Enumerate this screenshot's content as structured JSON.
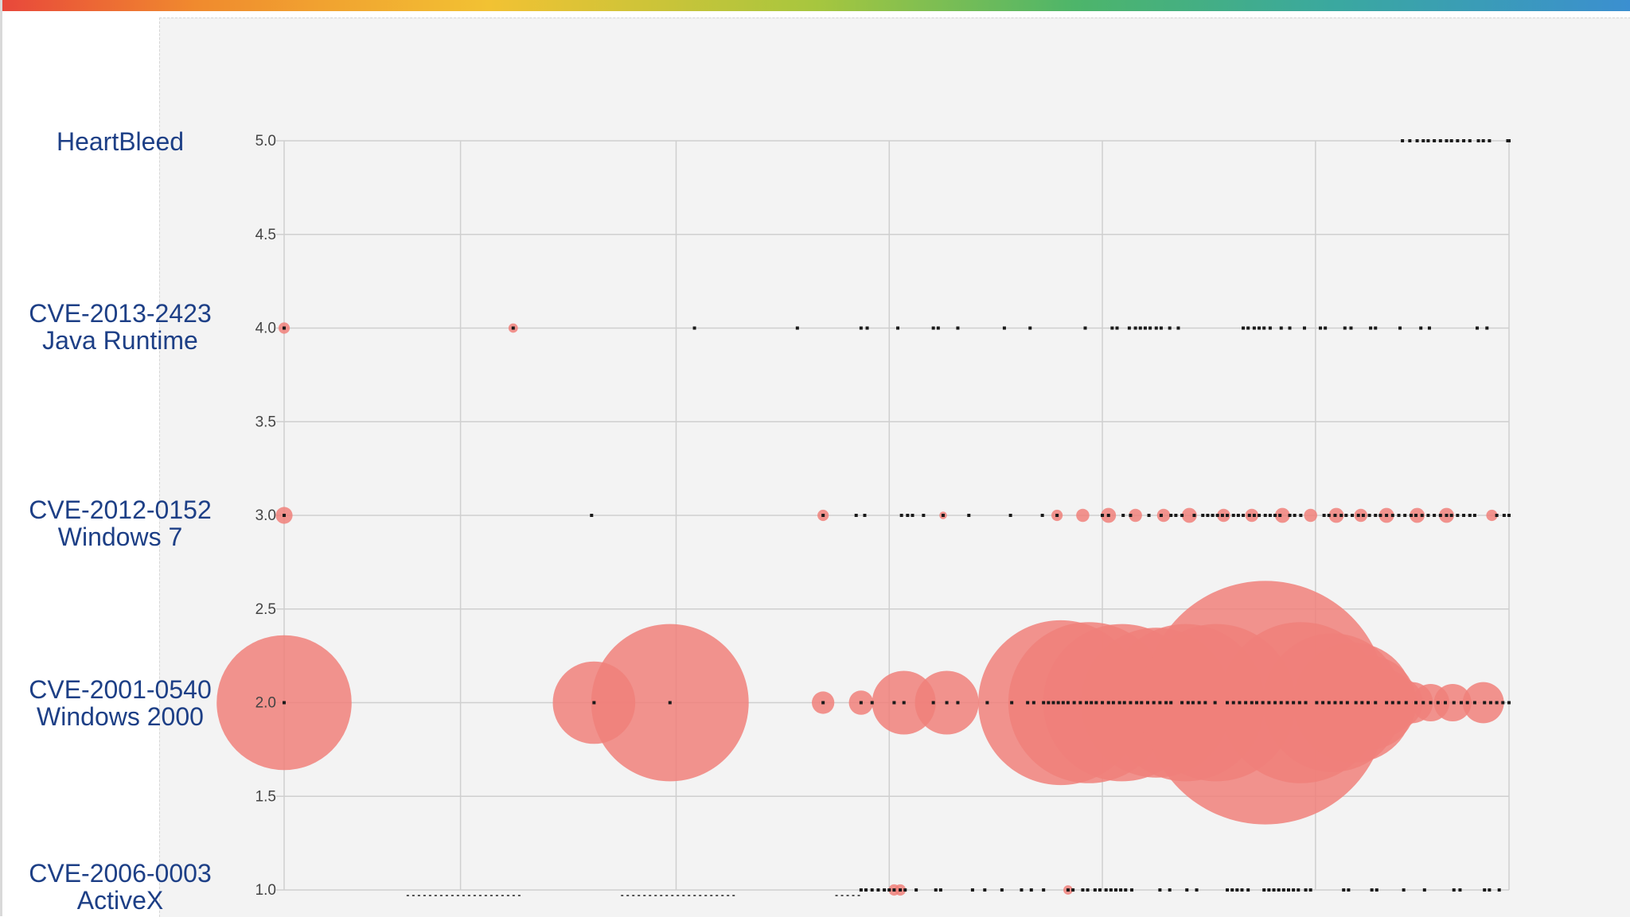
{
  "colors": {
    "bubble": "#f0807a",
    "dot": "#1a1a1a",
    "grid": "#cfcfcf",
    "label": "#1d3f86"
  },
  "row_labels": [
    {
      "line1": "HeartBleed",
      "line2": ""
    },
    {
      "line1": "CVE-2013-2423",
      "line2": "Java Runtime"
    },
    {
      "line1": "CVE-2012-0152",
      "line2": "Windows 7"
    },
    {
      "line1": "CVE-2001-0540",
      "line2": "Windows 2000"
    },
    {
      "line1": "CVE-2006-0003",
      "line2": "ActiveX"
    }
  ],
  "chart_data": {
    "type": "scatter",
    "title": "",
    "xlabel": "",
    "ylabel": "",
    "ylim": [
      1.0,
      5.0
    ],
    "xlim": [
      0,
      100
    ],
    "y_ticks": [
      "5.0",
      "4.5",
      "4.0",
      "3.5",
      "3.0",
      "2.5",
      "2.0",
      "1.5",
      "1.0"
    ],
    "x_gridlines": [
      0,
      14.4,
      32,
      49.4,
      66.8,
      84.2,
      100
    ],
    "grid": true,
    "legend": "none",
    "series": [
      {
        "y": 5.0,
        "dots": [
          91.3,
          91.9,
          92.5,
          93.0,
          93.4,
          93.9,
          94.4,
          94.9,
          95.3,
          95.8,
          96.3,
          96.8,
          97.5,
          97.9,
          98.4,
          99.9,
          100
        ],
        "bubbles": []
      },
      {
        "y": 4.0,
        "dots": [
          0,
          18.7,
          33.5,
          41.9,
          47.1,
          47.6,
          50.1,
          53.0,
          53.4,
          55.0,
          58.8,
          60.9,
          65.4,
          67.6,
          68.0,
          69.0,
          69.5,
          69.9,
          70.3,
          70.7,
          71.2,
          71.6,
          72.3,
          73.0,
          78.3,
          78.7,
          79.2,
          79.6,
          80.0,
          80.5,
          81.4,
          82.1,
          83.3,
          84.6,
          85.0,
          86.6,
          87.1,
          88.7,
          89.1,
          91.1,
          92.8,
          93.5,
          97.4,
          98.2
        ],
        "bubbles": [
          {
            "x": 0,
            "r": 0.3
          },
          {
            "x": 18.7,
            "r": 0.25
          }
        ]
      },
      {
        "y": 3.0,
        "dots": [
          0,
          25.1,
          44.0,
          46.7,
          47.4,
          50.4,
          50.9,
          51.3,
          52.2,
          53.8,
          55.9,
          59.3,
          61.9,
          63.1,
          66.8,
          67.3,
          68.5,
          69.1,
          70.6,
          71.6,
          72.4,
          72.8,
          73.3,
          74.3,
          75.0,
          75.4,
          75.8,
          76.2,
          76.6,
          77.0,
          77.5,
          77.9,
          78.3,
          78.8,
          79.2,
          79.6,
          80.1,
          80.5,
          80.9,
          81.3,
          82.1,
          82.5,
          83.0,
          84.9,
          85.3,
          85.8,
          86.3,
          86.7,
          87.2,
          87.7,
          88.1,
          88.6,
          89.1,
          89.5,
          90.0,
          90.5,
          91.0,
          91.5,
          92.0,
          92.4,
          92.9,
          93.4,
          93.9,
          94.4,
          94.9,
          95.3,
          95.8,
          96.3,
          96.8,
          97.2,
          99.0,
          99.6,
          100
        ],
        "bubbles": [
          {
            "x": 0,
            "r": 0.45
          },
          {
            "x": 44.0,
            "r": 0.3
          },
          {
            "x": 53.8,
            "r": 0.2
          },
          {
            "x": 63.1,
            "r": 0.3
          },
          {
            "x": 65.2,
            "r": 0.35
          },
          {
            "x": 67.3,
            "r": 0.4
          },
          {
            "x": 69.5,
            "r": 0.35
          },
          {
            "x": 71.8,
            "r": 0.35
          },
          {
            "x": 73.9,
            "r": 0.4
          },
          {
            "x": 76.7,
            "r": 0.35
          },
          {
            "x": 79.0,
            "r": 0.35
          },
          {
            "x": 81.5,
            "r": 0.4
          },
          {
            "x": 83.8,
            "r": 0.35
          },
          {
            "x": 85.9,
            "r": 0.4
          },
          {
            "x": 87.9,
            "r": 0.35
          },
          {
            "x": 90.0,
            "r": 0.4
          },
          {
            "x": 92.5,
            "r": 0.4
          },
          {
            "x": 94.9,
            "r": 0.4
          },
          {
            "x": 98.6,
            "r": 0.3
          }
        ]
      },
      {
        "y": 2.0,
        "dots": [
          0,
          25.3,
          31.5,
          44.0,
          47.1,
          48.0,
          49.8,
          50.6,
          53.0,
          54.1,
          55.0,
          57.4,
          59.4,
          60.7,
          61.2,
          62.0,
          62.4,
          62.8,
          63.2,
          63.6,
          64.0,
          64.5,
          65.0,
          65.5,
          65.9,
          66.3,
          66.8,
          67.3,
          67.7,
          68.2,
          68.6,
          69.1,
          69.6,
          70.0,
          70.5,
          71.0,
          71.5,
          72.0,
          72.4,
          73.3,
          73.8,
          74.2,
          74.7,
          75.2,
          76.0,
          77.0,
          77.5,
          78.0,
          78.5,
          79.0,
          79.4,
          79.9,
          80.4,
          80.9,
          81.4,
          81.9,
          82.4,
          82.9,
          83.4,
          84.3,
          84.8,
          85.3,
          85.8,
          86.3,
          86.8,
          87.5,
          88.0,
          88.5,
          89.1,
          90.0,
          90.5,
          91.0,
          91.6,
          92.4,
          93.0,
          93.6,
          94.2,
          94.8,
          95.5,
          96.1,
          96.6,
          97.2,
          98.0,
          98.5,
          99.0,
          99.5,
          100
        ],
        "bubbles": [
          {
            "x": 0,
            "r": 3.6
          },
          {
            "x": 25.3,
            "r": 2.2
          },
          {
            "x": 31.5,
            "r": 4.2
          },
          {
            "x": 44.0,
            "r": 0.6
          },
          {
            "x": 47.1,
            "r": 0.65
          },
          {
            "x": 50.6,
            "r": 1.7
          },
          {
            "x": 54.1,
            "r": 1.7
          },
          {
            "x": 63.4,
            "r": 4.4
          },
          {
            "x": 65.7,
            "r": 4.3
          },
          {
            "x": 68.4,
            "r": 4.2
          },
          {
            "x": 71.2,
            "r": 4.0
          },
          {
            "x": 73.6,
            "r": 4.2
          },
          {
            "x": 76.1,
            "r": 4.2
          },
          {
            "x": 80.1,
            "r": 6.5
          },
          {
            "x": 83.0,
            "r": 4.3
          },
          {
            "x": 85.6,
            "r": 3.7
          },
          {
            "x": 87.3,
            "r": 3.2
          },
          {
            "x": 88.6,
            "r": 2.5
          },
          {
            "x": 89.7,
            "r": 1.8
          },
          {
            "x": 90.8,
            "r": 1.4
          },
          {
            "x": 92.1,
            "r": 1.1
          },
          {
            "x": 93.6,
            "r": 1.0
          },
          {
            "x": 95.4,
            "r": 1.0
          },
          {
            "x": 97.9,
            "r": 1.1
          }
        ]
      },
      {
        "y": 1.0,
        "dots": [
          47.1,
          47.5,
          48.0,
          48.5,
          49.0,
          49.4,
          49.8,
          50.3,
          50.7,
          51.6,
          53.2,
          53.6,
          56.2,
          57.2,
          58.6,
          60.2,
          61.0,
          62.0,
          64.0,
          64.4,
          65.2,
          65.6,
          66.2,
          66.6,
          67.1,
          67.5,
          67.9,
          68.3,
          68.7,
          69.2,
          71.5,
          72.3,
          73.7,
          74.5,
          77.0,
          77.4,
          77.8,
          78.2,
          78.7,
          80.0,
          80.4,
          80.8,
          81.2,
          81.6,
          82.0,
          82.4,
          82.8,
          83.4,
          83.8,
          86.5,
          86.9,
          88.8,
          89.2,
          91.4,
          93.1,
          95.5,
          96.0,
          98.0,
          98.4,
          99.2
        ],
        "bubbles": [
          {
            "x": 49.8,
            "r": 0.3
          },
          {
            "x": 50.3,
            "r": 0.3
          },
          {
            "x": 64.0,
            "r": 0.25
          }
        ]
      }
    ],
    "x_axis_dots": [
      {
        "from": 10.0,
        "to": 19.5
      },
      {
        "from": 27.5,
        "to": 36.8
      },
      {
        "from": 45.0,
        "to": 47.0
      }
    ]
  }
}
